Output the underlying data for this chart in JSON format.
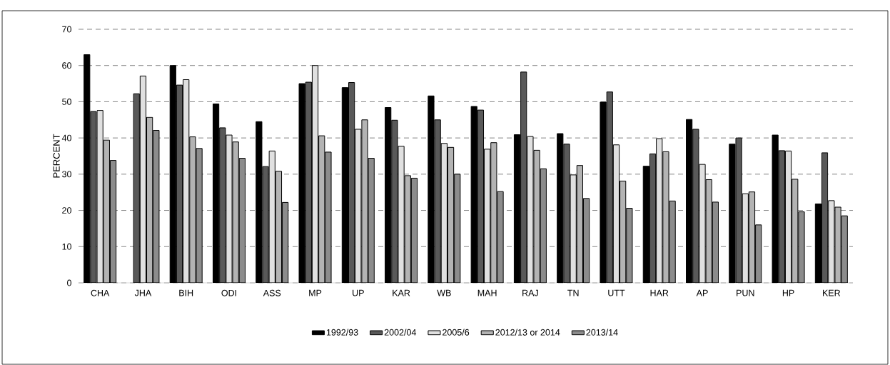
{
  "chart_data": {
    "type": "bar",
    "ylabel": "PERCENT",
    "categories": [
      "CHA",
      "JHA",
      "BIH",
      "ODI",
      "ASS",
      "MP",
      "UP",
      "KAR",
      "WB",
      "MAH",
      "RAJ",
      "TN",
      "UTT",
      "HAR",
      "AP",
      "PUN",
      "HP",
      "KER"
    ],
    "series": [
      {
        "name": "1992/93",
        "color": "#000000",
        "values": [
          63,
          null,
          60,
          49.4,
          44.5,
          55,
          53.9,
          48.4,
          51.6,
          48.7,
          40.9,
          41.2,
          49.9,
          32.2,
          45.1,
          38.3,
          40.8,
          21.8
        ]
      },
      {
        "name": "2002/04",
        "color": "#595959",
        "values": [
          47.3,
          52.2,
          54.6,
          42.8,
          32.1,
          55.4,
          55.3,
          44.9,
          45,
          47.7,
          58.2,
          38.3,
          52.7,
          35.6,
          42.4,
          40,
          36.5,
          35.9
        ]
      },
      {
        "name": "2005/6",
        "color": "#e0e0e0",
        "values": [
          47.6,
          57.1,
          56.1,
          40.8,
          36.4,
          60,
          42.4,
          37.7,
          38.5,
          36.9,
          40.4,
          29.8,
          38.1,
          39.8,
          32.7,
          24.6,
          36.4,
          22.7
        ]
      },
      {
        "name": "2012/13 or 2014",
        "color": "#b3b3b3",
        "values": [
          39.4,
          45.7,
          40.3,
          38.9,
          30.8,
          40.6,
          45,
          29.6,
          37.4,
          38.7,
          36.6,
          32.4,
          28.1,
          36.2,
          28.5,
          25.1,
          28.6,
          20.9
        ]
      },
      {
        "name": "2013/14",
        "color": "#8c8c8c",
        "values": [
          33.8,
          42.1,
          37.1,
          34.4,
          22.2,
          36.1,
          34.4,
          28.9,
          30,
          25.2,
          31.5,
          23.3,
          20.6,
          22.6,
          22.3,
          16,
          19.6,
          18.5
        ]
      }
    ],
    "ylim": [
      0,
      70
    ],
    "yticks": [
      0,
      10,
      20,
      30,
      40,
      50,
      60,
      70
    ],
    "grid": "y",
    "legend": "bottom"
  }
}
